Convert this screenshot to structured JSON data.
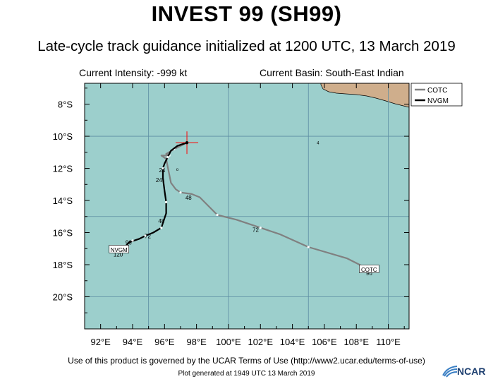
{
  "title": "INVEST 99 (SH99)",
  "subtitle": "Late-cycle track guidance initialized at 1200 UTC, 13 March 2019",
  "info": {
    "intensity": "Current Intensity: -999 kt",
    "basin": "Current Basin: South-East Indian"
  },
  "map": {
    "lon_range": [
      91,
      111.3
    ],
    "lat_range": [
      -22,
      -6.7
    ],
    "x_ticks": [
      {
        "lon": 92,
        "label": "92°E"
      },
      {
        "lon": 94,
        "label": "94°E"
      },
      {
        "lon": 96,
        "label": "96°E"
      },
      {
        "lon": 98,
        "label": "98°E"
      },
      {
        "lon": 100,
        "label": "100°E"
      },
      {
        "lon": 102,
        "label": "102°E"
      },
      {
        "lon": 104,
        "label": "104°E"
      },
      {
        "lon": 106,
        "label": "106°E"
      },
      {
        "lon": 108,
        "label": "108°E"
      },
      {
        "lon": 110,
        "label": "110°E"
      }
    ],
    "y_ticks": [
      {
        "lat": -8,
        "label": "8°S"
      },
      {
        "lat": -10,
        "label": "10°S"
      },
      {
        "lat": -12,
        "label": "12°S"
      },
      {
        "lat": -14,
        "label": "14°S"
      },
      {
        "lat": -16,
        "label": "16°S"
      },
      {
        "lat": -18,
        "label": "18°S"
      },
      {
        "lat": -20,
        "label": "20°S"
      }
    ],
    "gridlines": {
      "lons": [
        95,
        100,
        105,
        110
      ],
      "lats": [
        -10,
        -15,
        -20
      ]
    },
    "colors": {
      "ocean": "#9ccfcc",
      "land": "#cfae8c",
      "grid": "#5c8da3",
      "cotc": "#808080",
      "nvgm": "#000000",
      "marker": "#ff0000"
    },
    "initial_position": {
      "lon": 97.4,
      "lat": -10.4
    }
  },
  "legend": {
    "items": [
      {
        "label": "COTC",
        "color": "#808080"
      },
      {
        "label": "NVGM",
        "color": "#000000"
      }
    ]
  },
  "tracks": [
    {
      "name": "COTC",
      "color": "#808080",
      "points": [
        [
          97.4,
          -10.4
        ],
        [
          96.6,
          -10.8
        ],
        [
          96.1,
          -11.1
        ],
        [
          96.3,
          -11.2
        ],
        [
          95.8,
          -11.2
        ],
        [
          96.1,
          -11.4
        ],
        [
          96.2,
          -11.9
        ],
        [
          96.3,
          -12.4
        ],
        [
          96.4,
          -12.9
        ],
        [
          96.7,
          -13.3
        ],
        [
          97,
          -13.5
        ],
        [
          97.7,
          -13.6
        ],
        [
          98.2,
          -13.8
        ],
        [
          99.3,
          -14.9
        ],
        [
          100.5,
          -15.2
        ],
        [
          102,
          -15.7
        ],
        [
          103.2,
          -16.1
        ],
        [
          105,
          -16.9
        ],
        [
          107.4,
          -17.6
        ],
        [
          108.8,
          -18.3
        ]
      ],
      "dots": [
        [
          96.6,
          -10.8
        ],
        [
          96.3,
          -11.2
        ],
        [
          97,
          -13.5
        ],
        [
          99.3,
          -14.9
        ],
        [
          102,
          -15.7
        ],
        [
          105,
          -16.9
        ]
      ],
      "hour_labels": [
        {
          "lon": 97.5,
          "lat": -13.95,
          "text": "48"
        },
        {
          "lon": 101.7,
          "lat": -15.95,
          "text": "72"
        },
        {
          "lon": 108.8,
          "lat": -18.65,
          "text": "96"
        }
      ],
      "end_label": {
        "lon": 108.8,
        "lat": -18.28,
        "text": "COTC"
      }
    },
    {
      "name": "NVGM",
      "color": "#000000",
      "points": [
        [
          97.4,
          -10.4
        ],
        [
          96.8,
          -10.6
        ],
        [
          96.4,
          -10.9
        ],
        [
          96.2,
          -11.3
        ],
        [
          96,
          -11.7
        ],
        [
          95.9,
          -12
        ],
        [
          95.9,
          -12.6
        ],
        [
          96,
          -13.4
        ],
        [
          96.1,
          -14.1
        ],
        [
          96.1,
          -14.8
        ],
        [
          95.9,
          -15.4
        ],
        [
          95.8,
          -15.7
        ],
        [
          95.3,
          -16
        ],
        [
          94.8,
          -16.2
        ],
        [
          94.4,
          -16.4
        ],
        [
          93.8,
          -16.6
        ],
        [
          93.5,
          -16.9
        ],
        [
          93.3,
          -17.1
        ]
      ],
      "dots": [
        [
          96.2,
          -11.3
        ],
        [
          95.9,
          -12
        ],
        [
          96.1,
          -14.1
        ],
        [
          95.8,
          -15.7
        ],
        [
          94.8,
          -16.2
        ],
        [
          94,
          -16.5
        ]
      ],
      "hour_labels": [
        {
          "lon": 95.85,
          "lat": -12.25,
          "text": "24"
        },
        {
          "lon": 95.65,
          "lat": -12.85,
          "text": "24"
        },
        {
          "lon": 95.8,
          "lat": -15.4,
          "text": "48"
        },
        {
          "lon": 94.95,
          "lat": -16.35,
          "text": "72"
        },
        {
          "lon": 93.75,
          "lat": -16.75,
          "text": "96"
        },
        {
          "lon": 93.1,
          "lat": -17.5,
          "text": "120"
        }
      ],
      "end_label": {
        "lon": 93.15,
        "lat": -17.05,
        "text": "NVGM"
      }
    }
  ],
  "island_labels": [
    {
      "lon": 96.8,
      "lat": -12.15,
      "text": "o"
    },
    {
      "lon": 105.6,
      "lat": -10.5,
      "text": "4"
    }
  ],
  "footer": {
    "terms": "Use of this product is governed by the UCAR Terms of Use (http://www2.ucar.edu/terms-of-use)",
    "generated": "Plot generated at 1949 UTC  13 March 2019",
    "logo": "NCAR"
  }
}
